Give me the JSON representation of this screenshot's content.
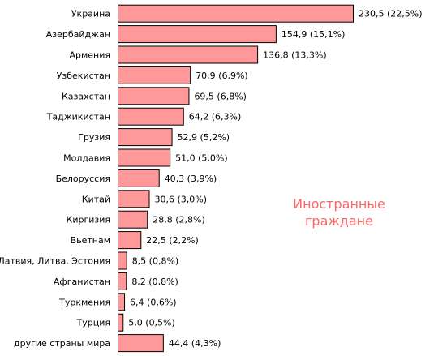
{
  "chart_data": {
    "type": "bar",
    "orientation": "horizontal",
    "categories": [
      "Украина",
      "Азербайджан",
      "Армения",
      "Узбекистан",
      "Казахстан",
      "Таджикистан",
      "Грузия",
      "Молдавия",
      "Белоруссия",
      "Китай",
      "Киргизия",
      "Вьетнам",
      "Латвия, Литва, Эстония",
      "Афганистан",
      "Туркмения",
      "Турция",
      "другие страны мира"
    ],
    "values": [
      230.5,
      154.9,
      136.8,
      70.9,
      69.5,
      64.2,
      52.9,
      51.0,
      40.3,
      30.6,
      28.8,
      22.5,
      8.5,
      8.2,
      6.4,
      5.0,
      44.4
    ],
    "data_labels": [
      "230,5 (22,5%)",
      "154,9 (15,1%)",
      "136,8 (13,3%)",
      "70,9 (6,9%)",
      "69,5 (6,8%)",
      "64,2 (6,3%)",
      "52,9 (5,2%)",
      "51,0 (5,0%)",
      "40,3 (3,9%)",
      "30,6 (3,0%)",
      "28,8 (2,8%)",
      "22,5 (2,2%)",
      "8,5 (0,8%)",
      "8,2 (0,8%)",
      "6,4 (0,6%)",
      "5,0 (0,5%)",
      "44,4 (4,3%)"
    ],
    "annotation": [
      "Иностранные",
      "граждане"
    ],
    "annotation_color": "#ff6666",
    "bar_color": "#ff9999",
    "xlim": [
      0,
      230.5
    ],
    "grid": false,
    "legend": "none"
  }
}
